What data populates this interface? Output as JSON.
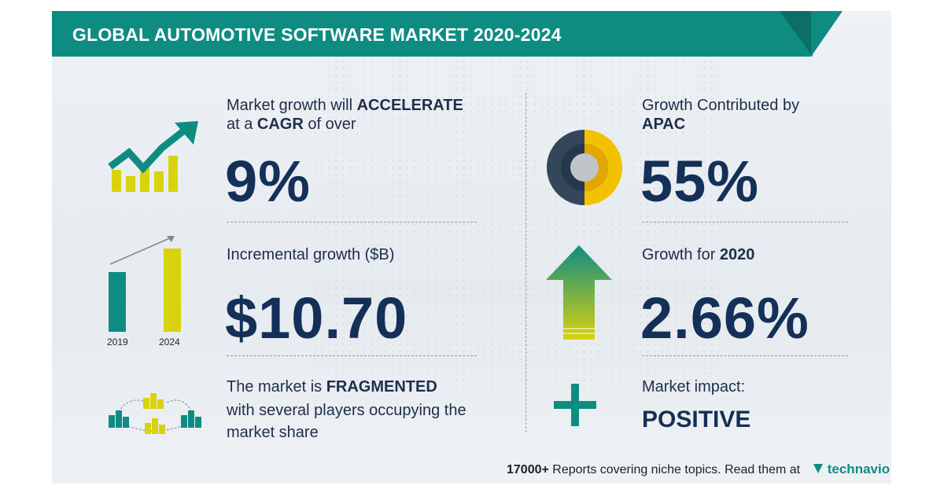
{
  "header": {
    "title": "GLOBAL AUTOMOTIVE SOFTWARE MARKET 2020-2024"
  },
  "cagr": {
    "line1_pre": "Market growth will ",
    "line1_bold": "ACCELERATE",
    "line2_pre": "at a ",
    "line2_bold": "CAGR",
    "line2_post": " of over",
    "value": "9%"
  },
  "incremental": {
    "label": "Incremental growth ($B)",
    "value": "$10.70",
    "year_start": "2019",
    "year_end": "2024"
  },
  "fragmented": {
    "pre": "The market is ",
    "bold": "FRAGMENTED",
    "line2": "with several players occupying the",
    "line3": "market share"
  },
  "region": {
    "label": "Growth Contributed by",
    "bold": "APAC",
    "value": "55%",
    "share": 0.55
  },
  "growth_year": {
    "label_pre": "Growth for ",
    "label_bold": "2020",
    "value": "2.66%"
  },
  "impact": {
    "label": "Market impact:",
    "value": "POSITIVE"
  },
  "footer": {
    "count": "17000+",
    "text": " Reports covering niche topics. Read them at",
    "brand": "technavio"
  },
  "colors": {
    "teal": "#0f8c82",
    "yellow": "#d9d20f",
    "navy": "#143058",
    "gold": "#f2c200",
    "slate": "#34465a"
  },
  "icons": [
    "growth-chart-icon",
    "bar-chart-icon",
    "buildings-network-icon",
    "donut-icon",
    "up-arrow-icon",
    "plus-icon",
    "technavio-logo-icon"
  ]
}
